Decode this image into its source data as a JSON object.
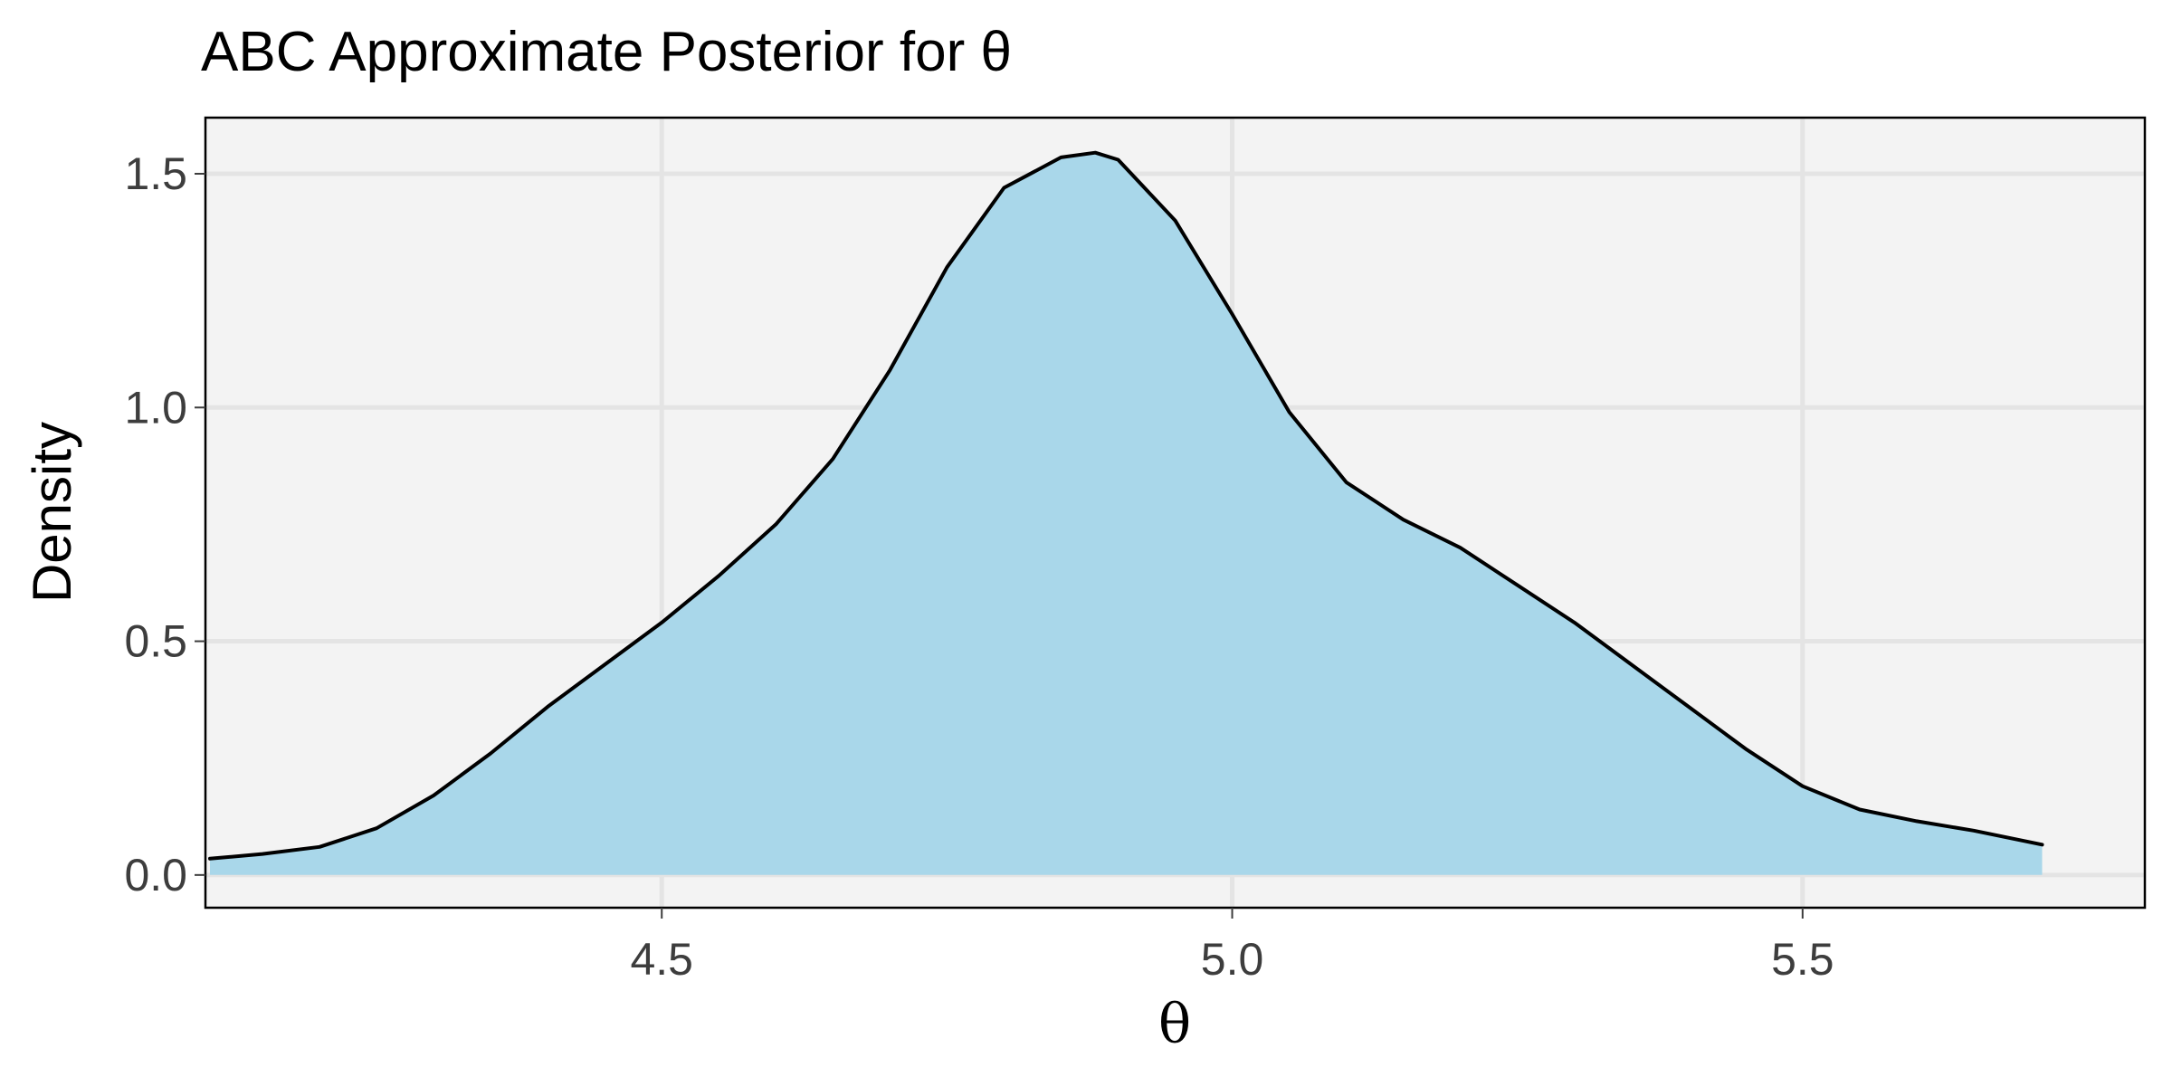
{
  "chart_data": {
    "type": "area",
    "title": "ABC Approximate Posterior for θ",
    "xlabel": "θ",
    "ylabel": "Density",
    "xlim": [
      4.1,
      5.8
    ],
    "ylim": [
      -0.07,
      1.62
    ],
    "x_ticks": [
      4.5,
      5.0,
      5.5
    ],
    "x_tick_labels": [
      "4.5",
      "5.0",
      "5.5"
    ],
    "y_ticks": [
      0.0,
      0.5,
      1.0,
      1.5
    ],
    "y_tick_labels": [
      "0.0",
      "0.5",
      "1.0",
      "1.5"
    ],
    "grid": true,
    "legend": "none",
    "series": [
      {
        "x": [
          4.104,
          4.15,
          4.2,
          4.25,
          4.3,
          4.35,
          4.4,
          4.45,
          4.5,
          4.55,
          4.6,
          4.65,
          4.7,
          4.75,
          4.8,
          4.85,
          4.88,
          4.9,
          4.95,
          5.0,
          5.05,
          5.1,
          5.15,
          5.2,
          5.25,
          5.3,
          5.35,
          5.4,
          5.45,
          5.5,
          5.55,
          5.6,
          5.65,
          5.71
        ],
        "y": [
          0.035,
          0.045,
          0.06,
          0.1,
          0.17,
          0.26,
          0.36,
          0.45,
          0.54,
          0.64,
          0.75,
          0.89,
          1.08,
          1.3,
          1.47,
          1.535,
          1.545,
          1.53,
          1.4,
          1.2,
          0.99,
          0.84,
          0.76,
          0.7,
          0.62,
          0.54,
          0.45,
          0.36,
          0.27,
          0.19,
          0.14,
          0.115,
          0.095,
          0.065
        ]
      }
    ],
    "colors": {
      "panel_background": "#f3f3f3",
      "grid": "#e4e4e4",
      "fill": "#a9d7ea",
      "line": "#000000",
      "frame": "#000000",
      "tick_text": "#3d3d3d"
    }
  }
}
